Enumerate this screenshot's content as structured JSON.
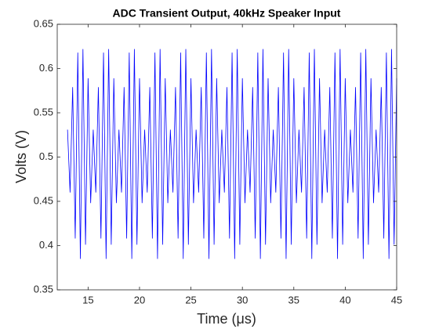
{
  "chart_data": {
    "type": "line",
    "title": "ADC Transient Output, 40kHz Speaker Input",
    "x_label": "Time (μs)",
    "y_label": "Volts (V)",
    "xlim": [
      12,
      45
    ],
    "xticks": [
      15,
      20,
      25,
      30,
      35,
      40,
      45
    ],
    "ylim": [
      0.35,
      0.65
    ],
    "yticks": [
      0.35,
      0.4,
      0.45,
      0.5,
      0.55,
      0.6,
      0.65
    ],
    "grid": false,
    "series": [
      {
        "color": "#0000ff",
        "x": [
          13,
          13.25,
          13.5,
          13.75,
          14,
          14.25,
          14.5,
          14.75,
          15,
          15.25,
          15.5,
          15.75,
          16,
          16.25,
          16.5,
          16.75,
          17,
          17.25,
          17.5,
          17.75,
          18,
          18.25,
          18.5,
          18.75,
          19,
          19.25,
          19.5,
          19.75,
          20,
          20.25,
          20.5,
          20.75,
          21,
          21.25,
          21.5,
          21.75,
          22,
          22.25,
          22.5,
          22.75,
          23,
          23.25,
          23.5,
          23.75,
          24,
          24.25,
          24.5,
          24.75,
          25,
          25.25,
          25.5,
          25.75,
          26,
          26.25,
          26.5,
          26.75,
          27,
          27.25,
          27.5,
          27.75,
          28,
          28.25,
          28.5,
          28.75,
          29,
          29.25,
          29.5,
          29.75,
          30,
          30.25,
          30.5,
          30.75,
          31,
          31.25,
          31.5,
          31.75,
          32,
          32.25,
          32.5,
          32.75,
          33,
          33.25,
          33.5,
          33.75,
          34,
          34.25,
          34.5,
          34.75,
          35,
          35.25,
          35.5,
          35.75,
          36,
          36.25,
          36.5,
          36.75,
          37,
          37.25,
          37.5,
          37.75,
          38,
          38.25,
          38.5,
          38.75,
          39,
          39.25,
          39.5,
          39.75,
          40,
          40.25,
          40.5,
          40.75,
          41,
          41.25,
          41.5,
          41.75,
          42,
          42.25,
          42.5,
          42.75,
          43,
          43.25,
          43.5,
          43.75,
          44,
          44.25,
          44.5,
          44.75,
          45
        ],
        "values": [
          0.531,
          0.46,
          0.579,
          0.408,
          0.618,
          0.385,
          0.622,
          0.401,
          0.589,
          0.448,
          0.531,
          0.46,
          0.579,
          0.408,
          0.618,
          0.385,
          0.622,
          0.401,
          0.589,
          0.448,
          0.531,
          0.46,
          0.579,
          0.408,
          0.618,
          0.385,
          0.622,
          0.401,
          0.589,
          0.448,
          0.531,
          0.46,
          0.579,
          0.408,
          0.618,
          0.385,
          0.622,
          0.401,
          0.589,
          0.448,
          0.531,
          0.46,
          0.579,
          0.408,
          0.618,
          0.385,
          0.622,
          0.401,
          0.589,
          0.448,
          0.531,
          0.46,
          0.579,
          0.408,
          0.618,
          0.385,
          0.622,
          0.401,
          0.589,
          0.448,
          0.531,
          0.46,
          0.579,
          0.408,
          0.618,
          0.385,
          0.622,
          0.401,
          0.589,
          0.448,
          0.531,
          0.46,
          0.579,
          0.408,
          0.618,
          0.385,
          0.622,
          0.401,
          0.589,
          0.448,
          0.531,
          0.46,
          0.579,
          0.408,
          0.618,
          0.385,
          0.622,
          0.401,
          0.589,
          0.448,
          0.531,
          0.46,
          0.579,
          0.408,
          0.618,
          0.385,
          0.622,
          0.401,
          0.589,
          0.448,
          0.531,
          0.46,
          0.579,
          0.408,
          0.618,
          0.385,
          0.622,
          0.401,
          0.589,
          0.448,
          0.531,
          0.46,
          0.579,
          0.408,
          0.618,
          0.385,
          0.622,
          0.401,
          0.589,
          0.448,
          0.531,
          0.46,
          0.579,
          0.408,
          0.618,
          0.385,
          0.622,
          0.401,
          0.589
        ]
      }
    ]
  }
}
